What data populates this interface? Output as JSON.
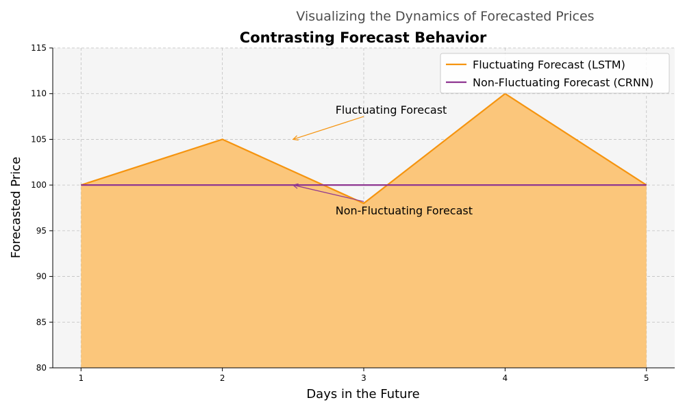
{
  "chart_data": {
    "type": "line",
    "subtitle": "Visualizing the Dynamics of Forecasted Prices",
    "title": "Contrasting Forecast Behavior",
    "xlabel": "Days in the Future",
    "ylabel": "Forecasted Price",
    "x": [
      1,
      2,
      3,
      4,
      5
    ],
    "xlim": [
      0.8,
      5.2
    ],
    "ylim": [
      80,
      115
    ],
    "xticks": [
      "1",
      "2",
      "3",
      "4",
      "5"
    ],
    "yticks": [
      "80",
      "85",
      "90",
      "95",
      "100",
      "105",
      "110",
      "115"
    ],
    "grid": true,
    "legend_position": "top-right",
    "series": [
      {
        "name": "Fluctuating Forecast (LSTM)",
        "values": [
          100,
          105,
          98,
          110,
          100
        ],
        "color": "#f5940f",
        "fill": true,
        "fill_color": "#fbc67b"
      },
      {
        "name": "Non-Fluctuating Forecast (CRNN)",
        "values": [
          100,
          100,
          100,
          100,
          100
        ],
        "color": "#8e3591",
        "fill": false
      }
    ],
    "annotations": [
      {
        "text": "Fluctuating Forecast",
        "text_xy": [
          2.8,
          107.8
        ],
        "arrow_to": [
          2.5,
          105
        ],
        "color": "#f5940f"
      },
      {
        "text": "Non-Fluctuating Forecast",
        "text_xy": [
          2.8,
          96.8
        ],
        "arrow_to": [
          2.5,
          100
        ],
        "color": "#8e3591"
      }
    ]
  }
}
